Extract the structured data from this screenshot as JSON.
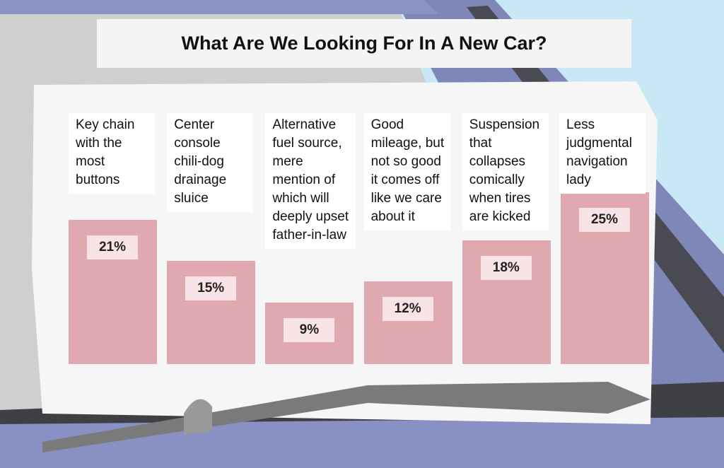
{
  "chart_data": {
    "type": "bar",
    "title": "What Are We Looking For In A New Car?",
    "categories": [
      "Key chain with the most buttons",
      "Center console chili-dog drainage sluice",
      "Alternative fuel source, mere mention of which will deeply upset father-in-law",
      "Good mileage, but not so good it comes off like we care about it",
      "Suspension that collapses comically when tires are kicked",
      "Less judgmental navigation lady"
    ],
    "values": [
      21,
      15,
      9,
      12,
      18,
      25
    ],
    "value_labels": [
      "21%",
      "15%",
      "9%",
      "12%",
      "18%",
      "25%"
    ],
    "color": "#e0a9b0"
  }
}
